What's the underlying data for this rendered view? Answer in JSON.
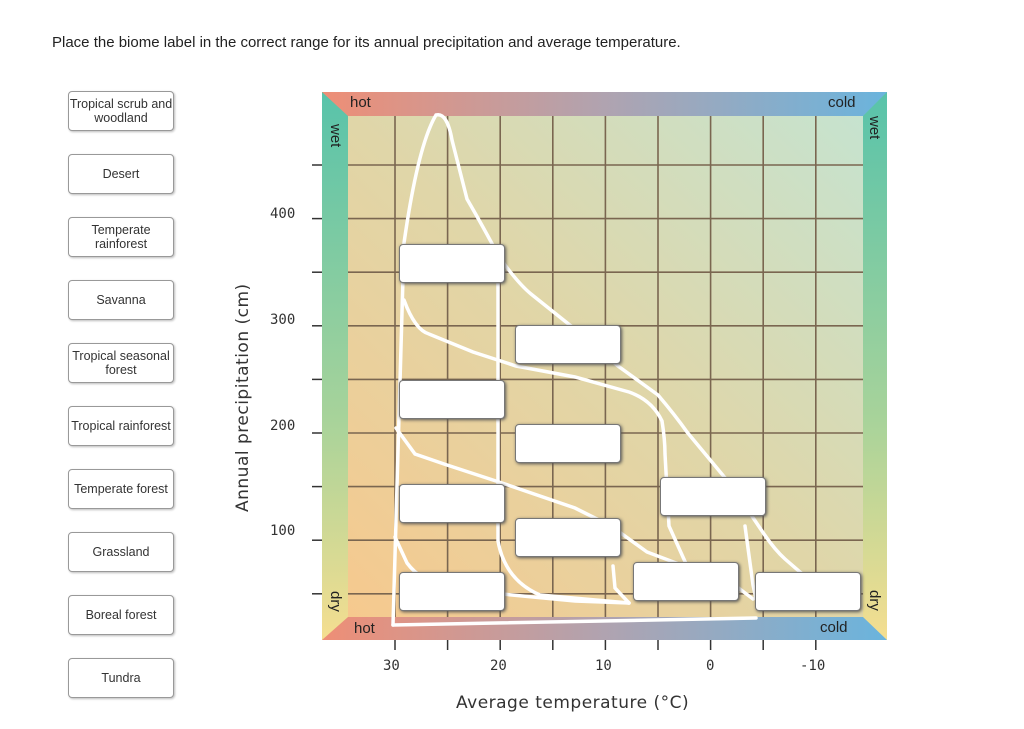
{
  "question": "Place the biome label in the correct range for its annual precipitation and average temperature.",
  "labels": [
    "Tropical scrub and woodland",
    "Desert",
    "Temperate rainforest",
    "Savanna",
    "Tropical seasonal forest",
    "Tropical rainforest",
    "Temperate forest",
    "Grassland",
    "Boreal forest",
    "Tundra"
  ],
  "chart": {
    "top_left": "hot",
    "top_right": "cold",
    "bottom_left": "hot",
    "bottom_right": "cold",
    "left_top": "wet",
    "left_bottom": "dry",
    "right_top": "wet",
    "right_bottom": "dry",
    "ylabel": "Annual precipitation (cm)",
    "xlabel": "Average temperature (°C)",
    "yticks": [
      "400",
      "300",
      "200",
      "100"
    ],
    "xticks": [
      "30",
      "20",
      "10",
      "0",
      "-10"
    ],
    "colors": {
      "hot": "#ee8e76",
      "cold": "#6ab4dd",
      "wet": "#58c3aa",
      "dry": "#f5de90"
    }
  },
  "drop_zone_count": 10
}
